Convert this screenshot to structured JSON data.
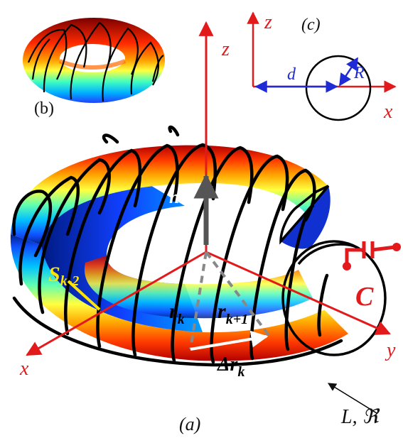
{
  "panels": {
    "a": "(a)",
    "b": "(b)",
    "c": "(c)"
  },
  "axes": {
    "x": "x",
    "y": "y",
    "z": "z"
  },
  "inset_c": {
    "z": "z",
    "x": "x",
    "d": "d",
    "R": "R"
  },
  "labels": {
    "n": "n",
    "s_base": "S",
    "s_sub": "k-2",
    "rk_base": "r",
    "rk_sub": "k",
    "rk1_base": "r",
    "rk1_sub": "k+1",
    "drk_base": "Δr",
    "drk_sub": "k",
    "C": "C",
    "L": "L, ℜ"
  },
  "colors": {
    "axis": "#e31a1c",
    "inset_blue": "#1f2bd6",
    "vector_n": "#555555",
    "wire": "#000000",
    "highlight": "#ffe400"
  }
}
